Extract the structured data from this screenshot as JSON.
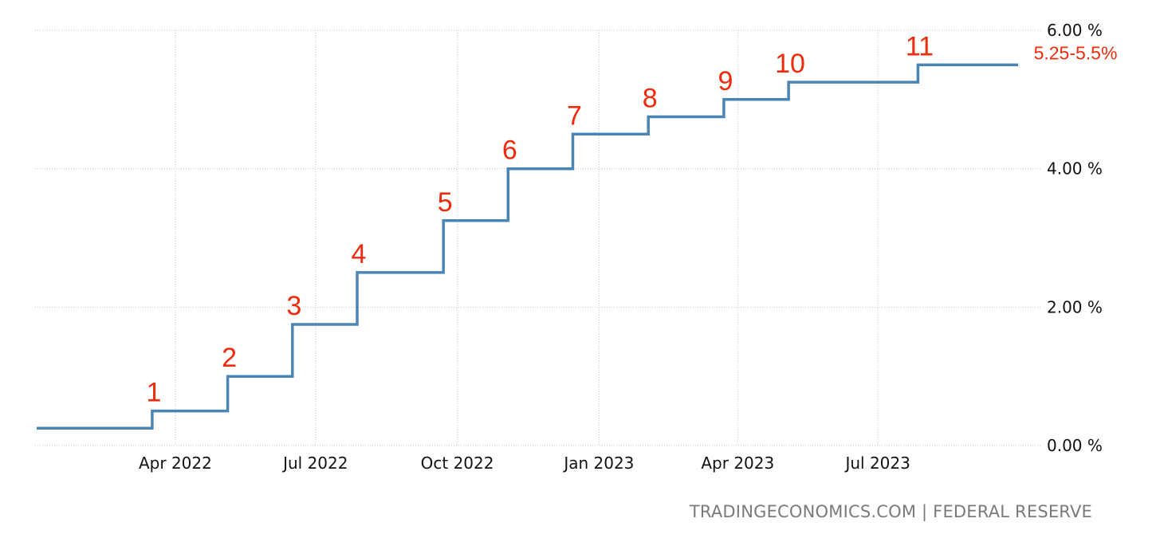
{
  "chart_data": {
    "type": "line",
    "step": true,
    "ylim": [
      0,
      6
    ],
    "xlim": [
      "2022-01-01",
      "2023-10-15"
    ],
    "grid": true,
    "y_ticks": [
      {
        "value": 0,
        "label": "0.00 %"
      },
      {
        "value": 2,
        "label": "2.00 %"
      },
      {
        "value": 4,
        "label": "4.00 %"
      },
      {
        "value": 6,
        "label": "6.00 %"
      }
    ],
    "x_ticks": [
      {
        "date": "2022-04-01",
        "label": "Apr 2022"
      },
      {
        "date": "2022-07-01",
        "label": "Jul 2022"
      },
      {
        "date": "2022-10-01",
        "label": "Oct 2022"
      },
      {
        "date": "2023-01-01",
        "label": "Jan 2023"
      },
      {
        "date": "2023-04-01",
        "label": "Apr 2023"
      },
      {
        "date": "2023-07-01",
        "label": "Jul 2023"
      }
    ],
    "series": [
      {
        "color": "#4a86b5",
        "points": [
          {
            "date": "2022-01-01",
            "value": 0.25
          },
          {
            "date": "2022-03-17",
            "value": 0.5
          },
          {
            "date": "2022-05-05",
            "value": 1.0
          },
          {
            "date": "2022-06-16",
            "value": 1.75
          },
          {
            "date": "2022-07-28",
            "value": 2.5
          },
          {
            "date": "2022-09-22",
            "value": 3.25
          },
          {
            "date": "2022-11-03",
            "value": 4.0
          },
          {
            "date": "2022-12-15",
            "value": 4.5
          },
          {
            "date": "2023-02-02",
            "value": 4.75
          },
          {
            "date": "2023-03-23",
            "value": 5.0
          },
          {
            "date": "2023-05-04",
            "value": 5.25
          },
          {
            "date": "2023-07-27",
            "value": 5.5
          },
          {
            "date": "2023-09-30",
            "value": 5.5
          }
        ]
      }
    ],
    "annotations": {
      "color": "#ee2b0c",
      "hike_labels": [
        "1",
        "2",
        "3",
        "4",
        "5",
        "6",
        "7",
        "8",
        "9",
        "10",
        "11"
      ],
      "last_value_label": "5.25-5.5%"
    }
  },
  "footer": {
    "source": "TRADINGECONOMICS.COM | FEDERAL RESERVE"
  }
}
